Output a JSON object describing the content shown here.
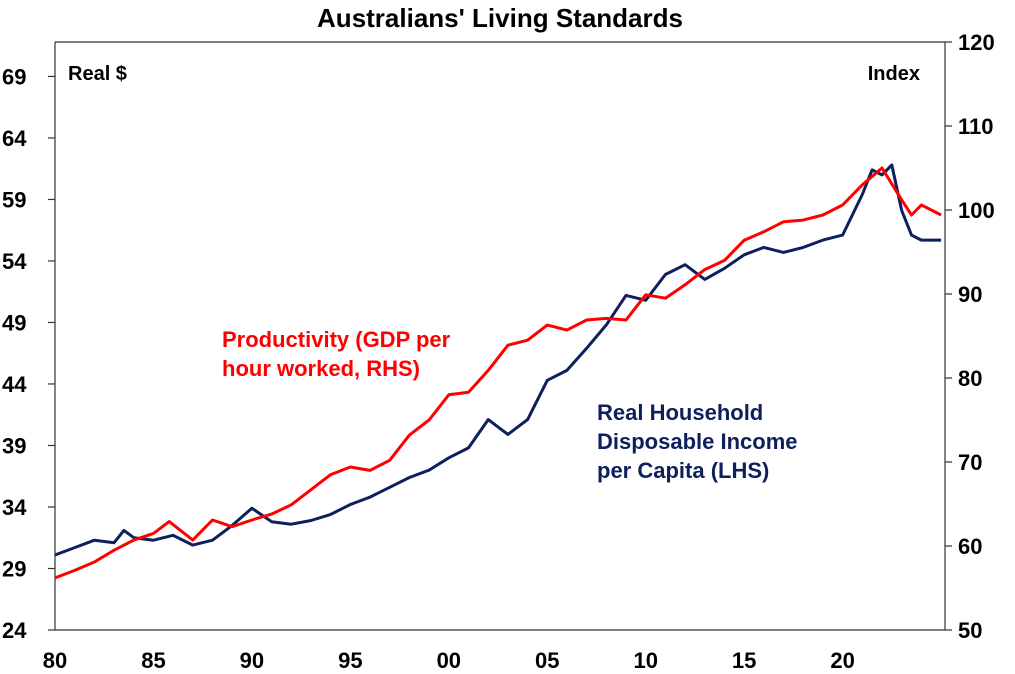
{
  "chart_data": {
    "type": "line",
    "title": "Australians' Living Standards",
    "left_axis": {
      "unit_label": "Real $",
      "ylim": [
        24,
        71.8
      ],
      "ticks": [
        24,
        29,
        34,
        39,
        44,
        49,
        54,
        59,
        64,
        69
      ],
      "tick_labels": [
        "24",
        "29",
        "34",
        "39",
        "44",
        "49",
        "54",
        "59",
        "64",
        "69"
      ]
    },
    "right_axis": {
      "unit_label": "Index",
      "ylim": [
        50,
        120
      ],
      "ticks": [
        50,
        60,
        70,
        80,
        90,
        100,
        110,
        120
      ],
      "tick_labels": [
        "50",
        "60",
        "70",
        "80",
        "90",
        "100",
        "110",
        "120"
      ]
    },
    "x_axis": {
      "xlim": [
        1980,
        2025.2
      ],
      "ticks": [
        1980,
        1985,
        1990,
        1995,
        2000,
        2005,
        2010,
        2015,
        2020
      ],
      "tick_labels": [
        "80",
        "85",
        "90",
        "95",
        "00",
        "05",
        "10",
        "15",
        "20"
      ]
    },
    "grid": false,
    "series": [
      {
        "name": "Real Household Disposable Income per Capita (LHS)",
        "axis": "left",
        "color": "#0d1f5c",
        "x": [
          1980,
          1981,
          1982,
          1983,
          1983.5,
          1984,
          1985,
          1986,
          1987,
          1988,
          1989,
          1990,
          1991,
          1992,
          1993,
          1994,
          1995,
          1996,
          1997,
          1998,
          1999,
          2000,
          2001,
          2002,
          2003,
          2004,
          2005,
          2006,
          2007,
          2008,
          2009,
          2010,
          2011,
          2012,
          2013,
          2014,
          2015,
          2016,
          2017,
          2018,
          2019,
          2020,
          2021,
          2021.5,
          2022,
          2022.5,
          2023,
          2023.5,
          2024,
          2025
        ],
        "values": [
          30.1,
          30.7,
          31.3,
          31.1,
          32.1,
          31.5,
          31.3,
          31.7,
          30.9,
          31.3,
          32.5,
          33.9,
          32.8,
          32.6,
          32.9,
          33.4,
          34.2,
          34.8,
          35.6,
          36.4,
          37.0,
          38.0,
          38.8,
          41.1,
          39.9,
          41.1,
          44.3,
          45.1,
          46.9,
          48.8,
          51.2,
          50.8,
          52.9,
          53.7,
          52.5,
          53.4,
          54.5,
          55.1,
          54.7,
          55.1,
          55.7,
          56.1,
          59.4,
          61.4,
          61.0,
          61.8,
          58.1,
          56.1,
          55.7,
          55.7
        ]
      },
      {
        "name": "Productivity (GDP per hour worked, RHS)",
        "axis": "right",
        "color": "#ff0000",
        "x": [
          1980,
          1981,
          1982,
          1983,
          1984,
          1985,
          1985.8,
          1987,
          1988,
          1989,
          1990,
          1991,
          1992,
          1993,
          1994,
          1995,
          1996,
          1997,
          1998,
          1999,
          2000,
          2001,
          2002,
          2003,
          2004,
          2005,
          2006,
          2007,
          2008,
          2009,
          2010,
          2011,
          2012,
          2013,
          2014,
          2015,
          2016,
          2017,
          2018,
          2019,
          2020,
          2021,
          2022,
          2023,
          2023.5,
          2024,
          2025
        ],
        "values": [
          56.2,
          57.1,
          58.1,
          59.5,
          60.7,
          61.5,
          62.9,
          60.7,
          63.1,
          62.3,
          63.1,
          63.8,
          64.9,
          66.7,
          68.5,
          69.4,
          69.0,
          70.2,
          73.2,
          75.0,
          78.0,
          78.3,
          80.9,
          83.9,
          84.5,
          86.3,
          85.7,
          86.9,
          87.1,
          86.9,
          89.9,
          89.5,
          91.1,
          92.9,
          94.0,
          96.4,
          97.4,
          98.6,
          98.8,
          99.4,
          100.6,
          103.0,
          105.0,
          101.2,
          99.4,
          100.6,
          99.4
        ]
      }
    ],
    "annotations": [
      {
        "text_lines": [
          "Productivity (GDP per",
          "hour worked, RHS)"
        ],
        "color": "#ff0000",
        "series": "Productivity (GDP per hour worked, RHS)"
      },
      {
        "text_lines": [
          "Real Household",
          "Disposable Income",
          "per Capita (LHS)"
        ],
        "color": "#0d1f5c",
        "series": "Real Household Disposable Income per Capita (LHS)"
      }
    ],
    "legend": "none (inline annotations)"
  }
}
